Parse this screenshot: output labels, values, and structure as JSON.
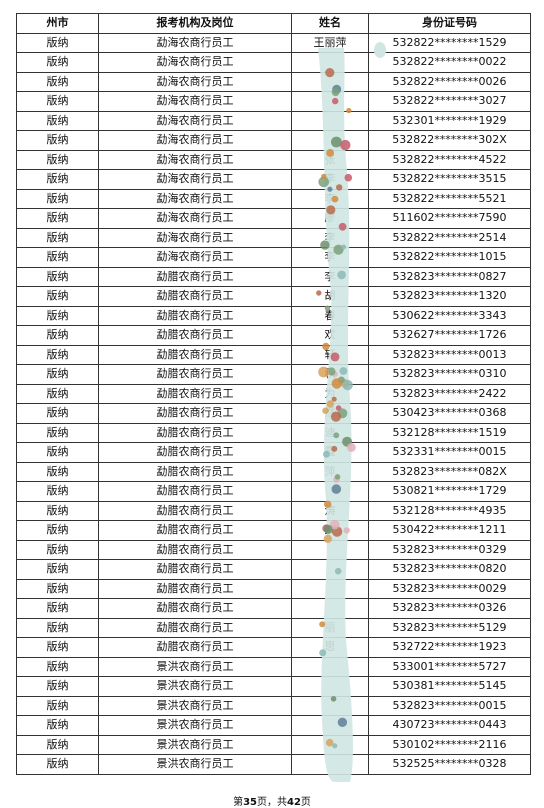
{
  "table": {
    "headers": [
      "州市",
      "报考机构及岗位",
      "姓名",
      "身份证号码"
    ],
    "rows": [
      [
        "版纳",
        "勐海农商行员工",
        "王丽萍",
        "532822********1529"
      ],
      [
        "版纳",
        "勐海农商行员工",
        "",
        "532822********0022"
      ],
      [
        "版纳",
        "勐海农商行员工",
        "",
        "532822********0026"
      ],
      [
        "版纳",
        "勐海农商行员工",
        "",
        "532822********3027"
      ],
      [
        "版纳",
        "勐海农商行员工",
        "",
        "532301********1929"
      ],
      [
        "版纳",
        "勐海农商行员工",
        "",
        "532822********302X"
      ],
      [
        "版纳",
        "勐海农商行员工",
        "张",
        "532822********4522"
      ],
      [
        "版纳",
        "勐海农商行员工",
        "李",
        "532822********3515"
      ],
      [
        "版纳",
        "勐海农商行员工",
        "李",
        "532822********5521"
      ],
      [
        "版纳",
        "勐海农商行员工",
        "廖",
        "511602********7590"
      ],
      [
        "版纳",
        "勐海农商行员工",
        "李",
        "532822********2514"
      ],
      [
        "版纳",
        "勐海农商行员工",
        "李",
        "532822********1015"
      ],
      [
        "版纳",
        "勐腊农商行员工",
        "李",
        "532823********0827"
      ],
      [
        "版纳",
        "勐腊农商行员工",
        "胡",
        "532823********1320"
      ],
      [
        "版纳",
        "勐腊农商行员工",
        "春",
        "530622********3343"
      ],
      [
        "版纳",
        "勐腊农商行员工",
        "欢",
        "532627********1726"
      ],
      [
        "版纳",
        "勐腊农商行员工",
        "轩",
        "532823********0013"
      ],
      [
        "版纳",
        "勐腊农商行员工",
        "秋",
        "532823********0310"
      ],
      [
        "版纳",
        "勐腊农商行员工",
        "为",
        "532823********2422"
      ],
      [
        "版纳",
        "勐腊农商行员工",
        "然",
        "530423********0368"
      ],
      [
        "版纳",
        "勐腊农商行员工",
        "迪",
        "532128********1519"
      ],
      [
        "版纳",
        "勐腊农商行员工",
        "霞",
        "532331********0015"
      ],
      [
        "版纳",
        "勐腊农商行员工",
        "萍",
        "532823********082X"
      ],
      [
        "版纳",
        "勐腊农商行员工",
        "",
        "530821********1729"
      ],
      [
        "版纳",
        "勐腊农商行员工",
        "涛",
        "532128********4935"
      ],
      [
        "版纳",
        "勐腊农商行员工",
        "文",
        "530422********1211"
      ],
      [
        "版纳",
        "勐腊农商行员工",
        "",
        "532823********0329"
      ],
      [
        "版纳",
        "勐腊农商行员工",
        "",
        "532823********0820"
      ],
      [
        "版纳",
        "勐腊农商行员工",
        "",
        "532823********0029"
      ],
      [
        "版纳",
        "勐腊农商行员工",
        "",
        "532823********0326"
      ],
      [
        "版纳",
        "勐腊农商行员工",
        "丽",
        "532823********5129"
      ],
      [
        "版纳",
        "勐腊农商行员工",
        "思",
        "532722********1923"
      ],
      [
        "版纳",
        "景洪农商行员工",
        "",
        "533001********5727"
      ],
      [
        "版纳",
        "景洪农商行员工",
        "",
        "530381********5145"
      ],
      [
        "版纳",
        "景洪农商行员工",
        "",
        "532823********0015"
      ],
      [
        "版纳",
        "景洪农商行员工",
        "",
        "430723********0443"
      ],
      [
        "版纳",
        "景洪农商行员工",
        "",
        "530102********2116"
      ],
      [
        "版纳",
        "景洪农商行员工",
        "",
        "532525********0328"
      ]
    ]
  },
  "footer": {
    "prefix": "第",
    "page": "35",
    "mid": "页，共",
    "total": "42",
    "suffix": "页"
  }
}
